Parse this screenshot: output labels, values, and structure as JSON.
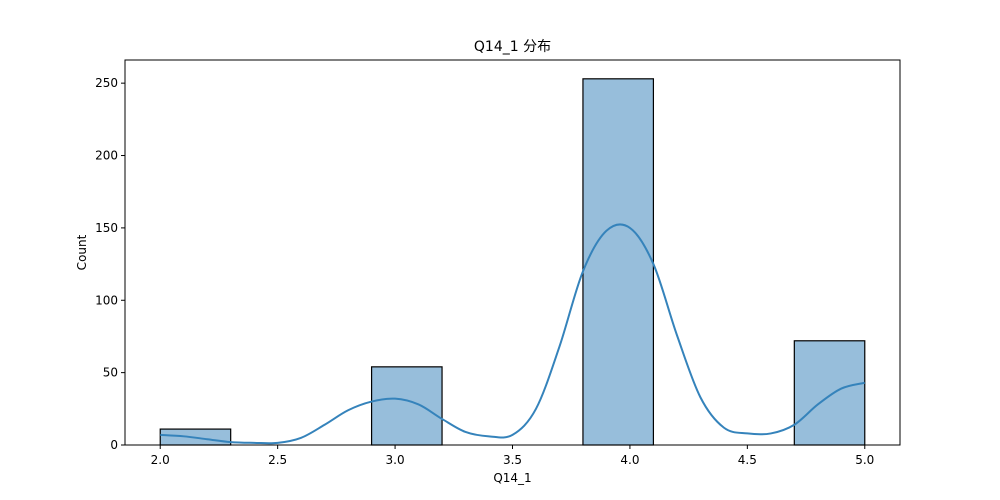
{
  "chart_data": {
    "type": "bar",
    "title": "Q14_1 分布",
    "xlabel": "Q14_1",
    "ylabel": "Count",
    "xlim": [
      1.85,
      5.15
    ],
    "ylim": [
      0,
      266
    ],
    "x_ticks": [
      2.0,
      2.5,
      3.0,
      3.5,
      4.0,
      4.5,
      5.0
    ],
    "y_ticks": [
      0,
      50,
      100,
      150,
      200,
      250
    ],
    "bin_width": 0.3,
    "bins": [
      {
        "x0": 2.0,
        "x1": 2.3,
        "count": 11
      },
      {
        "x0": 2.3,
        "x1": 2.6,
        "count": 0
      },
      {
        "x0": 2.6,
        "x1": 2.9,
        "count": 0
      },
      {
        "x0": 2.9,
        "x1": 3.2,
        "count": 54
      },
      {
        "x0": 3.2,
        "x1": 3.5,
        "count": 0
      },
      {
        "x0": 3.5,
        "x1": 3.8,
        "count": 0
      },
      {
        "x0": 3.8,
        "x1": 4.1,
        "count": 253
      },
      {
        "x0": 4.1,
        "x1": 4.4,
        "count": 0
      },
      {
        "x0": 4.4,
        "x1": 4.7,
        "count": 0
      },
      {
        "x0": 4.7,
        "x1": 5.0,
        "count": 72
      }
    ],
    "kde": {
      "x": [
        2.0,
        2.1,
        2.2,
        2.3,
        2.4,
        2.5,
        2.6,
        2.7,
        2.8,
        2.9,
        3.0,
        3.1,
        3.2,
        3.3,
        3.4,
        3.5,
        3.6,
        3.7,
        3.8,
        3.9,
        4.0,
        4.1,
        4.2,
        4.3,
        4.4,
        4.5,
        4.6,
        4.7,
        4.8,
        4.9,
        5.0
      ],
      "y": [
        7,
        6,
        4,
        2,
        1.5,
        1.5,
        5,
        14,
        24,
        30,
        32,
        28,
        18,
        9,
        6,
        7,
        25,
        68,
        120,
        148,
        150,
        125,
        76,
        33,
        12,
        8,
        8,
        14,
        28,
        39,
        43
      ]
    },
    "colors": {
      "bar_fill": "#97bedb",
      "bar_edge": "#000000",
      "kde_line": "#3583bb"
    },
    "grid": false,
    "legend": "none"
  }
}
